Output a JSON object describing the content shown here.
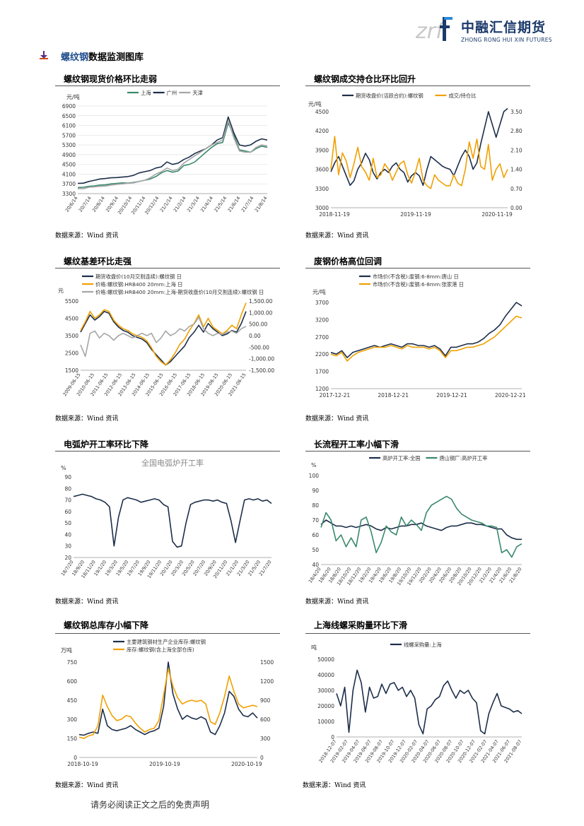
{
  "header": {
    "logo_mark": "zrf",
    "logo_cn": "中融汇信期货",
    "logo_en": "ZHONG RONG HUI XIN FUTURES",
    "colors": {
      "brand": "#1b3a6b",
      "accent": "#2a8bd8"
    }
  },
  "section": {
    "title_highlight": "螺纹钢",
    "title_rest": "数据监测图库",
    "icon": "arrow-down-icon"
  },
  "source_text": "数据来源：Wind 资讯",
  "footer": "请务必阅读正文之后的免责声明",
  "chart_data": [
    {
      "id": "c1",
      "type": "line",
      "title": "螺纹钢现货价格环比走弱",
      "ylabel": "元/吨",
      "ylim": [
        3300,
        6900
      ],
      "yticks": [
        3300,
        3700,
        4100,
        4500,
        4900,
        5300,
        5700,
        6100,
        6500,
        6900
      ],
      "x_tick_labels": [
        "20/6/14",
        "20/7/14",
        "20/8/14",
        "20/9/14",
        "20/10/14",
        "20/11/14",
        "20/12/14",
        "21/1/14",
        "21/2/14",
        "21/3/14",
        "21/4/14",
        "21/5/14",
        "21/6/14",
        "21/7/14",
        "21/8/14"
      ],
      "grid": true,
      "legend": "top",
      "series": [
        {
          "name": "上海",
          "color": "#3a8a6c",
          "values": [
            3550,
            3560,
            3600,
            3620,
            3650,
            3660,
            3700,
            3720,
            3740,
            3730,
            3760,
            3800,
            3850,
            3900,
            4000,
            4150,
            4250,
            4180,
            4230,
            4450,
            4500,
            4600,
            4800,
            5000,
            5200,
            5350,
            5400,
            6200,
            5700,
            5100,
            5050,
            5000,
            5150,
            5250,
            5200
          ]
        },
        {
          "name": "广州",
          "color": "#1c2e4a",
          "values": [
            3720,
            3730,
            3800,
            3850,
            3900,
            3920,
            3950,
            3960,
            3980,
            4000,
            4050,
            4150,
            4200,
            4250,
            4350,
            4400,
            4600,
            4500,
            4550,
            4700,
            4800,
            4950,
            5050,
            5150,
            5300,
            5500,
            5600,
            6450,
            5800,
            5300,
            5250,
            5300,
            5450,
            5550,
            5500
          ]
        },
        {
          "name": "天津",
          "color": "#a6a6a6",
          "values": [
            3500,
            3500,
            3560,
            3580,
            3600,
            3610,
            3650,
            3680,
            3700,
            3720,
            3740,
            3800,
            3850,
            3950,
            4100,
            4200,
            4350,
            4250,
            4300,
            4550,
            4700,
            4850,
            5000,
            5150,
            5300,
            5400,
            5500,
            6300,
            5600,
            5050,
            5000,
            5000,
            5200,
            5300,
            5250
          ]
        }
      ]
    },
    {
      "id": "c2",
      "type": "line",
      "title": "螺纹钢成交持仓比环比回升",
      "ylim": [
        3000,
        4500
      ],
      "yticks": [
        3000,
        3300,
        3600,
        3900,
        4200,
        4500
      ],
      "y2lim": [
        0,
        3.5
      ],
      "y2ticks": [
        "0.00",
        "0.70",
        "1.40",
        "2.10",
        "2.80",
        "3.50"
      ],
      "x_tick_labels": [
        "2018-11-19",
        "2019-11-19",
        "2020-11-19"
      ],
      "ylabel": "元/吨",
      "grid": false,
      "legend": "top",
      "series": [
        {
          "name": "期货收盘价(活跃合约):螺纹钢",
          "color": "#1c2e4a",
          "axis": "left",
          "values": [
            3560,
            3700,
            3800,
            3650,
            3500,
            3350,
            3420,
            3600,
            3700,
            3850,
            3750,
            3550,
            3450,
            3550,
            3600,
            3550,
            3650,
            3700,
            3600,
            3550,
            3400,
            3500,
            3550,
            3500,
            3350,
            3600,
            3800,
            3750,
            3700,
            3650,
            3620,
            3600,
            3500,
            3650,
            3800,
            3900,
            3800,
            3600,
            3700,
            4000,
            4250,
            4500,
            4300,
            4100,
            4300,
            4500,
            4550
          ]
        },
        {
          "name": "成交/持仓比",
          "color": "#f0a000",
          "axis": "right",
          "values": [
            1.4,
            2.6,
            1.2,
            2.0,
            1.7,
            1.1,
            1.6,
            2.2,
            1.5,
            1.3,
            1.0,
            1.8,
            1.1,
            1.2,
            1.6,
            1.4,
            1.0,
            1.3,
            1.6,
            1.7,
            1.2,
            0.9,
            1.3,
            1.8,
            1.0,
            0.8,
            0.7,
            1.2,
            1.0,
            0.9,
            0.8,
            0.8,
            1.2,
            0.9,
            0.8,
            1.4,
            2.4,
            1.8,
            2.5,
            1.5,
            1.4,
            2.3,
            1.0,
            1.4,
            1.6,
            1.1,
            1.4
          ]
        }
      ]
    },
    {
      "id": "c3",
      "type": "line",
      "title": "螺纹基差环比走强",
      "ylim": [
        1500,
        5500
      ],
      "yticks": [
        1500,
        2500,
        3500,
        4500,
        5500
      ],
      "y2lim": [
        -1500,
        1500
      ],
      "y2ticks": [
        "-1,500.00",
        "-1,000.00",
        "-500.00",
        "0.00",
        "500.00",
        "1,000.00",
        "1,500.00"
      ],
      "x_tick_labels": [
        "2009-06-15",
        "2010-06-15",
        "2011-06-15",
        "2012-06-15",
        "2013-06-15",
        "2014-06-15",
        "2015-06-15",
        "2016-06-15",
        "2017-06-15",
        "2018-06-15",
        "2019-06-15",
        "2020-06-15",
        "2021-06-15"
      ],
      "ylabel": "元",
      "grid": false,
      "legend": "top",
      "series": [
        {
          "name": "期货收盘价(10月交割连续):螺纹钢 日",
          "color": "#1c2e4a",
          "axis": "left",
          "values": [
            3700,
            4200,
            4700,
            4400,
            4600,
            4900,
            4800,
            4300,
            4000,
            3800,
            3700,
            3500,
            3400,
            3300,
            3100,
            2700,
            2400,
            2100,
            1800,
            2000,
            2300,
            2600,
            2900,
            3400,
            3700,
            4100,
            3700,
            4200,
            3900,
            3700,
            3500,
            3600,
            3800,
            3700,
            4200,
            4900
          ]
        },
        {
          "name": "价格:螺纹钢:HRB400 20mm:上海 日",
          "color": "#f0a000",
          "axis": "left",
          "values": [
            3800,
            4300,
            4900,
            4500,
            4700,
            5000,
            4900,
            4400,
            4100,
            3900,
            3800,
            3600,
            3500,
            3400,
            3200,
            2800,
            2300,
            2000,
            1800,
            2100,
            2500,
            3000,
            3300,
            3800,
            4200,
            4700,
            4000,
            4500,
            4000,
            3800,
            3600,
            3800,
            4100,
            3900,
            4700,
            5400
          ]
        },
        {
          "name": "价格:螺纹钢:HRB400 20mm:上海-期货收盘价(10月交割连续):螺纹钢 日",
          "color": "#a6a6a6",
          "axis": "right",
          "values": [
            -400,
            -900,
            100,
            200,
            -100,
            100,
            0,
            -200,
            0,
            100,
            0,
            -100,
            0,
            100,
            0,
            100,
            -300,
            -100,
            200,
            0,
            100,
            300,
            200,
            400,
            500,
            800,
            300,
            100,
            0,
            100,
            50,
            150,
            200,
            100,
            300,
            400
          ]
        }
      ]
    },
    {
      "id": "c4",
      "type": "line",
      "title": "废钢价格高位回调",
      "ylim": [
        1200,
        3700
      ],
      "yticks": [
        1200,
        1700,
        2200,
        2700,
        3200,
        3700
      ],
      "x_tick_labels": [
        "2017-12-21",
        "2018-12-21",
        "2019-12-21",
        "2020-12-21"
      ],
      "ylabel": "元/吨",
      "grid": false,
      "legend": "top",
      "series": [
        {
          "name": "市场价(不含税):废钢:6-8mm:唐山 日",
          "color": "#1c2e4a",
          "values": [
            2250,
            2200,
            2300,
            2100,
            2250,
            2300,
            2350,
            2400,
            2450,
            2400,
            2450,
            2500,
            2450,
            2400,
            2500,
            2500,
            2450,
            2450,
            2400,
            2450,
            2350,
            2150,
            2400,
            2400,
            2450,
            2500,
            2500,
            2550,
            2650,
            2800,
            2900,
            3050,
            3300,
            3500,
            3700,
            3600
          ]
        },
        {
          "name": "市场价(不含税):废钢:6-8mm:张家港 日",
          "color": "#f0a000",
          "values": [
            2200,
            2150,
            2250,
            2000,
            2150,
            2250,
            2300,
            2350,
            2400,
            2400,
            2400,
            2450,
            2400,
            2350,
            2450,
            2400,
            2400,
            2400,
            2350,
            2400,
            2300,
            2100,
            2300,
            2300,
            2350,
            2400,
            2400,
            2450,
            2500,
            2600,
            2700,
            2850,
            3000,
            3150,
            3300,
            3250
          ]
        }
      ]
    },
    {
      "id": "c5",
      "type": "line",
      "title": "电弧炉开工率环比下降",
      "subtitle": "全国电弧炉开工率",
      "ylabel": "%",
      "ylim": [
        20,
        90
      ],
      "yticks": [
        20,
        30,
        40,
        50,
        60,
        70,
        80,
        90
      ],
      "x_tick_labels": [
        "18/7/20",
        "18/9/20",
        "18/11/20",
        "19/1/20",
        "19/3/20",
        "19/5/20",
        "19/7/20",
        "19/9/20",
        "19/11/20",
        "20/1/20",
        "20/3/20",
        "20/5/20",
        "20/7/20",
        "20/9/20",
        "20/11/20",
        "21/1/20",
        "21/3/20",
        "21/5/20",
        "21/7/20"
      ],
      "grid": false,
      "series": [
        {
          "name": "",
          "color": "#1c2e4a",
          "values": [
            73,
            74,
            75,
            74,
            73,
            71,
            70,
            68,
            64,
            30,
            55,
            70,
            72,
            71,
            70,
            68,
            69,
            70,
            71,
            70,
            66,
            64,
            34,
            29,
            30,
            50,
            66,
            68,
            69,
            70,
            70,
            69,
            70,
            68,
            67,
            52,
            33,
            52,
            70,
            71,
            70,
            71,
            69,
            70,
            67
          ]
        }
      ]
    },
    {
      "id": "c6",
      "type": "line",
      "title": "长流程开工率小幅下滑",
      "ylabel": "%",
      "ylim": [
        40,
        100
      ],
      "yticks": [
        40,
        50,
        60,
        70,
        80,
        90,
        100
      ],
      "x_tick_labels": [
        "18/4/20",
        "18/6/20",
        "18/8/20",
        "18/10/20",
        "18/12/20",
        "19/2/20",
        "19/4/20",
        "19/6/20",
        "19/8/20",
        "19/10/20",
        "19/12/20",
        "20/2/20",
        "20/4/20",
        "20/6/20",
        "20/8/20",
        "20/10/20",
        "20/12/20",
        "21/2/20",
        "21/4/20",
        "21/6/20",
        "21/8/20"
      ],
      "grid": false,
      "legend": "top",
      "series": [
        {
          "name": "高炉开工率:全国",
          "color": "#1c2e4a",
          "values": [
            67,
            70,
            68,
            66,
            66,
            65,
            66,
            65,
            66,
            67,
            66,
            64,
            63,
            65,
            64,
            65,
            66,
            66,
            67,
            67,
            68,
            66,
            65,
            64,
            63,
            65,
            66,
            66,
            67,
            68,
            68,
            67,
            67,
            66,
            65,
            64,
            64,
            60,
            58,
            57,
            57
          ]
        },
        {
          "name": "唐山钢厂:高炉开工率",
          "color": "#3a8a6c",
          "values": [
            65,
            75,
            70,
            56,
            60,
            52,
            58,
            52,
            70,
            72,
            62,
            48,
            55,
            66,
            62,
            60,
            72,
            66,
            70,
            67,
            63,
            75,
            80,
            82,
            84,
            86,
            84,
            78,
            74,
            72,
            70,
            69,
            68,
            66,
            66,
            65,
            48,
            50,
            45,
            52,
            54
          ]
        }
      ]
    },
    {
      "id": "c7",
      "type": "line",
      "title": "螺纹钢总库存小幅下降",
      "ylabel": "万吨",
      "ylim": [
        0,
        750
      ],
      "yticks": [
        0,
        150,
        300,
        450,
        600,
        750
      ],
      "y2lim": [
        0,
        1500
      ],
      "y2ticks": [
        "0",
        "300",
        "600",
        "900",
        "1200",
        "1500"
      ],
      "x_tick_labels": [
        "2018-10-19",
        "2019-10-19",
        "2020-10-19"
      ],
      "grid": false,
      "legend": "top",
      "series": [
        {
          "name": "主要建筑钢材生产企业库存:螺纹钢",
          "color": "#1c2e4a",
          "axis": "left",
          "values": [
            180,
            175,
            190,
            200,
            190,
            380,
            250,
            220,
            210,
            220,
            230,
            250,
            220,
            200,
            180,
            200,
            210,
            230,
            400,
            750,
            500,
            380,
            300,
            330,
            310,
            300,
            320,
            300,
            200,
            180,
            250,
            350,
            520,
            480,
            380,
            330,
            320,
            350,
            310
          ]
        },
        {
          "name": "库存:螺纹钢(含上海全部仓库)",
          "color": "#f0a000",
          "axis": "left",
          "values": [
            160,
            150,
            170,
            180,
            250,
            490,
            400,
            330,
            290,
            300,
            330,
            320,
            270,
            230,
            200,
            220,
            230,
            290,
            490,
            700,
            560,
            470,
            420,
            440,
            450,
            440,
            450,
            420,
            280,
            260,
            350,
            480,
            640,
            520,
            420,
            390,
            400,
            410,
            400
          ]
        }
      ]
    },
    {
      "id": "c8",
      "type": "line",
      "title": "上海线螺采购量环比下滑",
      "ylabel": "吨",
      "ylim": [
        0,
        50000
      ],
      "yticks": [
        0,
        10000,
        20000,
        30000,
        40000,
        50000
      ],
      "x_tick_labels": [
        "2018-12-07",
        "2019-02-07",
        "2019-04-07",
        "2019-06-07",
        "2019-08-07",
        "2019-10-07",
        "2019-12-07",
        "2020-02-07",
        "2020-04-07",
        "2020-06-07",
        "2020-08-07",
        "2020-10-07",
        "2020-12-07",
        "2021-02-07",
        "2021-04-07",
        "2021-06-07",
        "2021-08-07"
      ],
      "grid": false,
      "legend": "top",
      "series": [
        {
          "name": "线螺采购量:上海",
          "color": "#1c2e4a",
          "values": [
            28000,
            20000,
            32000,
            3000,
            30000,
            43000,
            35000,
            16000,
            32000,
            25000,
            26000,
            34000,
            28000,
            34000,
            35000,
            30000,
            32000,
            26000,
            30000,
            25000,
            8000,
            2000,
            18000,
            20000,
            24000,
            26000,
            33000,
            36000,
            30000,
            25000,
            30000,
            28000,
            30000,
            25000,
            22000,
            4000,
            2000,
            15000,
            22000,
            28000,
            20000,
            19000,
            18000,
            16000,
            17000,
            15000
          ]
        }
      ]
    }
  ]
}
